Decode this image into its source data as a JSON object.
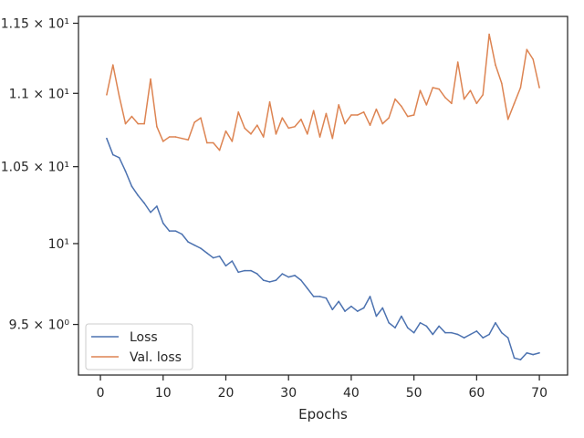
{
  "chart_data": {
    "type": "line",
    "title": "",
    "xlabel": "Epochs",
    "ylabel": "",
    "yscale": "log",
    "xlim": [
      -3.5,
      74.5
    ],
    "ylim": [
      9.2,
      11.55
    ],
    "grid": false,
    "legend_position": "lower-left",
    "x_ticks": [
      0,
      10,
      20,
      30,
      40,
      50,
      60,
      70
    ],
    "x_tick_labels": [
      "0",
      "10",
      "20",
      "30",
      "40",
      "50",
      "60",
      "70"
    ],
    "y_ticks": [
      {
        "value": 11.5,
        "label": "1.15 × 10¹"
      },
      {
        "value": 11.0,
        "label": "1.1 × 10¹"
      },
      {
        "value": 10.5,
        "label": "1.05 × 10¹"
      },
      {
        "value": 10.0,
        "label": "10¹"
      },
      {
        "value": 9.5,
        "label": "9.5 × 10⁰"
      }
    ],
    "x": [
      1,
      2,
      3,
      4,
      5,
      6,
      7,
      8,
      9,
      10,
      11,
      12,
      13,
      14,
      15,
      16,
      17,
      18,
      19,
      20,
      21,
      22,
      23,
      24,
      25,
      26,
      27,
      28,
      29,
      30,
      31,
      32,
      33,
      34,
      35,
      36,
      37,
      38,
      39,
      40,
      41,
      42,
      43,
      44,
      45,
      46,
      47,
      48,
      49,
      50,
      51,
      52,
      53,
      54,
      55,
      56,
      57,
      58,
      59,
      60,
      61,
      62,
      63,
      64,
      65,
      66,
      67,
      68,
      69,
      70
    ],
    "series": [
      {
        "name": "Loss",
        "color": "#4c72b0",
        "values": [
          10.69,
          10.58,
          10.56,
          10.47,
          10.37,
          10.31,
          10.26,
          10.2,
          10.24,
          10.13,
          10.08,
          10.08,
          10.06,
          10.01,
          9.99,
          9.97,
          9.94,
          9.91,
          9.92,
          9.86,
          9.89,
          9.82,
          9.83,
          9.83,
          9.81,
          9.77,
          9.76,
          9.77,
          9.81,
          9.79,
          9.8,
          9.77,
          9.72,
          9.67,
          9.67,
          9.66,
          9.59,
          9.64,
          9.58,
          9.61,
          9.58,
          9.6,
          9.67,
          9.55,
          9.6,
          9.51,
          9.48,
          9.55,
          9.48,
          9.45,
          9.51,
          9.49,
          9.44,
          9.49,
          9.45,
          9.45,
          9.44,
          9.42,
          9.44,
          9.46,
          9.42,
          9.44,
          9.51,
          9.45,
          9.42,
          9.3,
          9.29,
          9.33,
          9.32,
          9.33
        ]
      },
      {
        "name": "Val. loss",
        "color": "#dd8452",
        "values": [
          10.99,
          11.2,
          10.98,
          10.79,
          10.84,
          10.79,
          10.79,
          11.1,
          10.77,
          10.67,
          10.7,
          10.7,
          10.69,
          10.68,
          10.8,
          10.83,
          10.66,
          10.66,
          10.61,
          10.74,
          10.67,
          10.87,
          10.76,
          10.72,
          10.78,
          10.7,
          10.94,
          10.72,
          10.83,
          10.76,
          10.77,
          10.82,
          10.72,
          10.88,
          10.7,
          10.86,
          10.69,
          10.92,
          10.79,
          10.85,
          10.85,
          10.87,
          10.78,
          10.89,
          10.79,
          10.83,
          10.96,
          10.91,
          10.84,
          10.85,
          11.02,
          10.92,
          11.04,
          11.03,
          10.97,
          10.93,
          11.22,
          10.96,
          11.02,
          10.93,
          10.99,
          11.42,
          11.2,
          11.07,
          10.82,
          10.93,
          11.04,
          11.31,
          11.24,
          11.04
        ]
      }
    ]
  }
}
